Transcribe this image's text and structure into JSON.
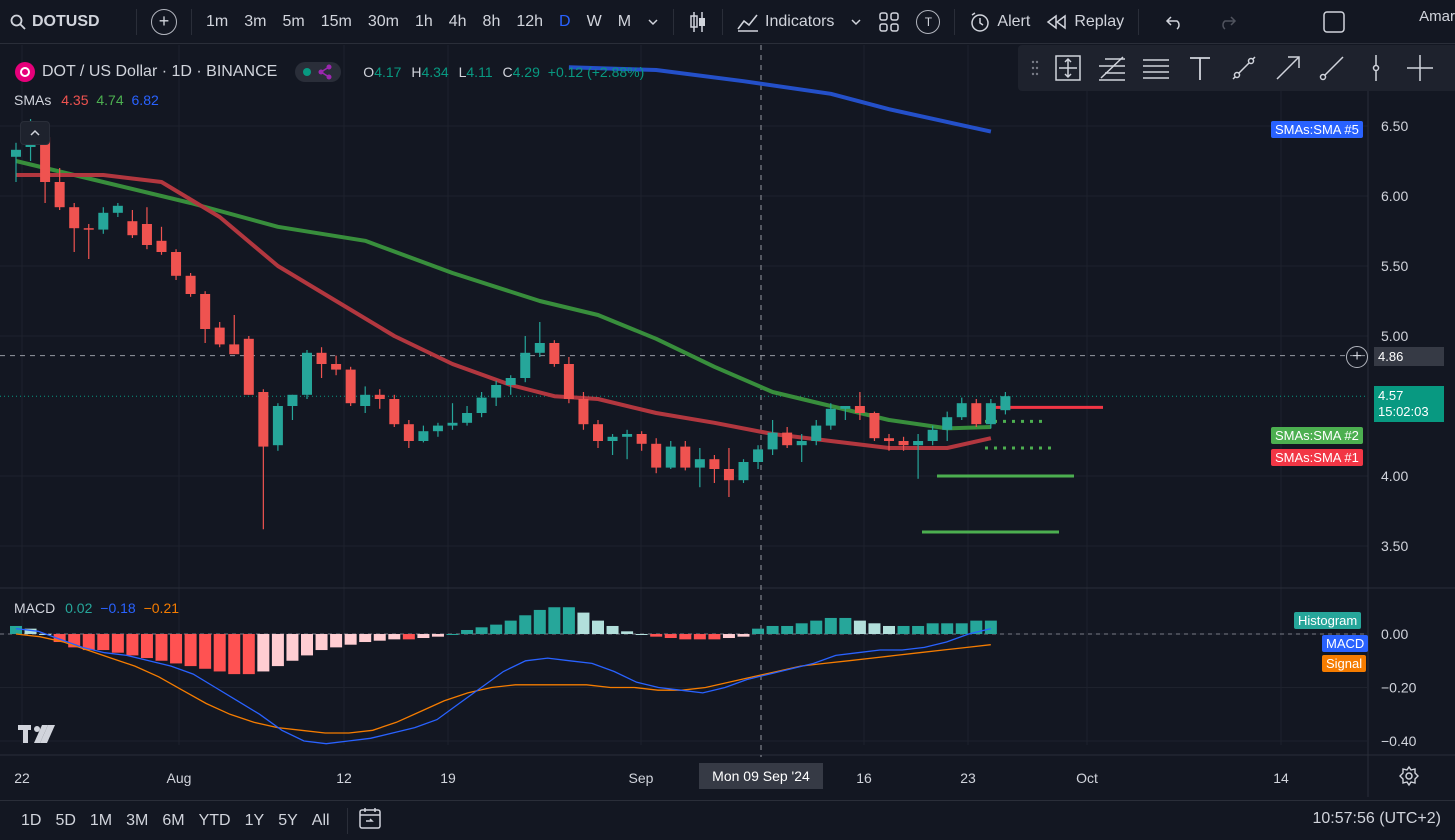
{
  "topbar": {
    "symbol": "DOTUSD",
    "intervals": [
      "1m",
      "3m",
      "5m",
      "15m",
      "30m",
      "1h",
      "4h",
      "8h",
      "12h",
      "D",
      "W",
      "M"
    ],
    "active_interval": "D",
    "indicators_label": "Indicators",
    "alert_label": "Alert",
    "replay_label": "Replay",
    "template_badge": "T",
    "user_name": "Amar"
  },
  "legend": {
    "title": "DOT / US Dollar · 1D · BINANCE",
    "o_label": "O",
    "o": "4.17",
    "h_label": "H",
    "h": "4.34",
    "l_label": "L",
    "l": "4.11",
    "c_label": "C",
    "c": "4.29",
    "change": "+0.12 (+2.88%)"
  },
  "sma_legend": {
    "name": "SMAs",
    "v1": "4.35",
    "v2": "4.74",
    "v3": "6.82"
  },
  "macd_legend": {
    "name": "MACD",
    "v1": "0.02",
    "v2": "−0.18",
    "v3": "−0.21"
  },
  "tags": {
    "sma5": "SMAs:SMA #5",
    "sma2": "SMAs:SMA #2",
    "sma1": "SMAs:SMA #1",
    "histogram": "Histogram",
    "macd": "MACD",
    "signal": "Signal"
  },
  "price_labels": {
    "cursor_price": "4.86",
    "last_price": "4.57",
    "countdown": "15:02:03"
  },
  "crosshair_date": "Mon 09 Sep '24",
  "bottombar": {
    "ranges": [
      "1D",
      "5D",
      "1M",
      "3M",
      "6M",
      "YTD",
      "1Y",
      "5Y",
      "All"
    ],
    "time": "10:57:56 (UTC+2)"
  },
  "colors": {
    "up": "#26a69a",
    "down": "#ef5350",
    "sma1": "#b2373f",
    "sma2": "#388e3c",
    "sma5": "#2450c9",
    "macd": "#2962ff",
    "signal": "#f57c00",
    "accent": "#2962ff"
  },
  "chart_data": [
    {
      "type": "candlestick",
      "title": "DOT / US Dollar · 1D · BINANCE",
      "x_tick_labels": [
        "22",
        "Aug",
        "12",
        "19",
        "Sep",
        "16",
        "23",
        "Oct",
        "14"
      ],
      "y_tick_labels": [
        "6.50",
        "6.00",
        "5.50",
        "5.00",
        "4.00",
        "3.50"
      ],
      "ylim": [
        3.3,
        6.85
      ],
      "candles": [
        [
          6.28,
          6.38,
          6.1,
          6.33
        ],
        [
          6.35,
          6.55,
          6.25,
          6.42
        ],
        [
          6.42,
          6.5,
          5.95,
          6.1
        ],
        [
          6.1,
          6.2,
          5.9,
          5.92
        ],
        [
          5.92,
          5.95,
          5.6,
          5.77
        ],
        [
          5.77,
          5.8,
          5.55,
          5.76
        ],
        [
          5.76,
          5.92,
          5.73,
          5.88
        ],
        [
          5.88,
          5.95,
          5.85,
          5.93
        ],
        [
          5.82,
          5.9,
          5.7,
          5.72
        ],
        [
          5.8,
          5.92,
          5.62,
          5.65
        ],
        [
          5.68,
          5.78,
          5.58,
          5.6
        ],
        [
          5.6,
          5.62,
          5.4,
          5.43
        ],
        [
          5.43,
          5.45,
          5.28,
          5.3
        ],
        [
          5.3,
          5.32,
          4.95,
          5.05
        ],
        [
          5.06,
          5.1,
          4.92,
          4.94
        ],
        [
          4.94,
          5.15,
          4.88,
          4.87
        ],
        [
          4.98,
          5.0,
          4.58,
          4.58
        ],
        [
          4.6,
          4.62,
          3.62,
          4.21
        ],
        [
          4.22,
          4.52,
          4.18,
          4.5
        ],
        [
          4.5,
          4.58,
          4.4,
          4.58
        ],
        [
          4.58,
          4.9,
          4.55,
          4.88
        ],
        [
          4.88,
          4.92,
          4.7,
          4.8
        ],
        [
          4.8,
          4.86,
          4.72,
          4.76
        ],
        [
          4.76,
          4.78,
          4.5,
          4.52
        ],
        [
          4.5,
          4.64,
          4.45,
          4.58
        ],
        [
          4.58,
          4.62,
          4.48,
          4.55
        ],
        [
          4.55,
          4.58,
          4.35,
          4.37
        ],
        [
          4.37,
          4.4,
          4.2,
          4.25
        ],
        [
          4.25,
          4.36,
          4.24,
          4.32
        ],
        [
          4.32,
          4.38,
          4.28,
          4.36
        ],
        [
          4.36,
          4.52,
          4.33,
          4.38
        ],
        [
          4.38,
          4.5,
          4.36,
          4.45
        ],
        [
          4.45,
          4.6,
          4.42,
          4.56
        ],
        [
          4.56,
          4.68,
          4.5,
          4.65
        ],
        [
          4.65,
          4.72,
          4.58,
          4.7
        ],
        [
          4.7,
          5.0,
          4.67,
          4.88
        ],
        [
          4.88,
          5.1,
          4.85,
          4.95
        ],
        [
          4.95,
          4.97,
          4.78,
          4.8
        ],
        [
          4.8,
          4.85,
          4.52,
          4.55
        ],
        [
          4.55,
          4.6,
          4.33,
          4.37
        ],
        [
          4.37,
          4.4,
          4.2,
          4.25
        ],
        [
          4.25,
          4.3,
          4.15,
          4.28
        ],
        [
          4.28,
          4.33,
          4.12,
          4.3
        ],
        [
          4.3,
          4.32,
          4.18,
          4.23
        ],
        [
          4.23,
          4.27,
          4.02,
          4.06
        ],
        [
          4.06,
          4.25,
          4.05,
          4.21
        ],
        [
          4.21,
          4.25,
          4.04,
          4.06
        ],
        [
          4.06,
          4.2,
          3.92,
          4.12
        ],
        [
          4.12,
          4.15,
          3.95,
          4.05
        ],
        [
          4.05,
          4.2,
          3.85,
          3.97
        ],
        [
          3.97,
          4.12,
          3.95,
          4.1
        ],
        [
          4.1,
          4.22,
          4.05,
          4.19
        ],
        [
          4.19,
          4.4,
          4.15,
          4.31
        ],
        [
          4.31,
          4.35,
          4.2,
          4.22
        ],
        [
          4.22,
          4.3,
          4.1,
          4.25
        ],
        [
          4.25,
          4.4,
          4.22,
          4.36
        ],
        [
          4.36,
          4.52,
          4.33,
          4.48
        ],
        [
          4.48,
          4.5,
          4.4,
          4.5
        ],
        [
          4.5,
          4.6,
          4.4,
          4.45
        ],
        [
          4.45,
          4.46,
          4.25,
          4.27
        ],
        [
          4.27,
          4.3,
          4.18,
          4.25
        ],
        [
          4.25,
          4.28,
          4.18,
          4.22
        ],
        [
          4.22,
          4.3,
          3.98,
          4.25
        ],
        [
          4.25,
          4.36,
          4.22,
          4.33
        ],
        [
          4.33,
          4.46,
          4.25,
          4.42
        ],
        [
          4.42,
          4.56,
          4.4,
          4.52
        ],
        [
          4.52,
          4.55,
          4.35,
          4.37
        ],
        [
          4.37,
          4.55,
          4.34,
          4.52
        ],
        [
          4.47,
          4.6,
          4.44,
          4.57
        ]
      ],
      "sma_1": [
        [
          0,
          6.15
        ],
        [
          6,
          6.15
        ],
        [
          10,
          6.1
        ],
        [
          14,
          5.85
        ],
        [
          18,
          5.5
        ],
        [
          22,
          5.25
        ],
        [
          26,
          5.0
        ],
        [
          30,
          4.8
        ],
        [
          34,
          4.65
        ],
        [
          37,
          4.57
        ],
        [
          40,
          4.55
        ],
        [
          44,
          4.45
        ],
        [
          48,
          4.38
        ],
        [
          52,
          4.3
        ],
        [
          56,
          4.25
        ],
        [
          60,
          4.2
        ],
        [
          64,
          4.2
        ],
        [
          67,
          4.27
        ]
      ],
      "sma_2": [
        [
          0,
          6.25
        ],
        [
          6,
          6.1
        ],
        [
          12,
          5.95
        ],
        [
          18,
          5.78
        ],
        [
          24,
          5.68
        ],
        [
          30,
          5.45
        ],
        [
          36,
          5.25
        ],
        [
          40,
          5.15
        ],
        [
          44,
          4.98
        ],
        [
          48,
          4.78
        ],
        [
          52,
          4.6
        ],
        [
          56,
          4.5
        ],
        [
          60,
          4.4
        ],
        [
          64,
          4.34
        ],
        [
          67,
          4.35
        ]
      ],
      "sma_5": [
        [
          38,
          6.92
        ],
        [
          44,
          6.9
        ],
        [
          50,
          6.82
        ],
        [
          56,
          6.73
        ],
        [
          60,
          6.62
        ],
        [
          67,
          6.46
        ]
      ],
      "horizontal_levels": [
        4.49,
        4.39,
        4.2,
        4.0,
        3.6
      ],
      "cursor_price": 4.86,
      "last_price": 4.57
    },
    {
      "type": "macd",
      "title": "MACD",
      "y_tick_labels": [
        "0.00",
        "−0.20",
        "−0.40"
      ],
      "ylim": [
        -0.46,
        0.08
      ],
      "histogram": [
        0.03,
        0.02,
        0.0,
        -0.03,
        -0.05,
        -0.06,
        -0.06,
        -0.07,
        -0.08,
        -0.09,
        -0.1,
        -0.11,
        -0.12,
        -0.13,
        -0.14,
        -0.15,
        -0.15,
        -0.14,
        -0.12,
        -0.1,
        -0.08,
        -0.06,
        -0.05,
        -0.04,
        -0.03,
        -0.025,
        -0.02,
        -0.02,
        -0.015,
        -0.01,
        0.0,
        0.015,
        0.025,
        0.035,
        0.05,
        0.07,
        0.09,
        0.1,
        0.1,
        0.08,
        0.05,
        0.03,
        0.01,
        0.0,
        -0.01,
        -0.015,
        -0.02,
        -0.02,
        -0.02,
        -0.015,
        -0.01,
        0.02,
        0.03,
        0.03,
        0.04,
        0.05,
        0.06,
        0.06,
        0.05,
        0.04,
        0.03,
        0.03,
        0.03,
        0.04,
        0.04,
        0.04,
        0.05,
        0.05
      ],
      "macd": [
        0.02,
        0.01,
        -0.02,
        -0.05,
        -0.07,
        -0.08,
        -0.1,
        -0.12,
        -0.15,
        -0.2,
        -0.25,
        -0.3,
        -0.36,
        -0.4,
        -0.41,
        -0.4,
        -0.39,
        -0.37,
        -0.35,
        -0.32,
        -0.26,
        -0.2,
        -0.14,
        -0.1,
        -0.09,
        -0.1,
        -0.11,
        -0.14,
        -0.18,
        -0.2,
        -0.21,
        -0.22,
        -0.2,
        -0.17,
        -0.15,
        -0.13,
        -0.11,
        -0.08,
        -0.07,
        -0.06,
        -0.06,
        -0.05,
        -0.03,
        0.0,
        0.02
      ],
      "signal": [
        0.0,
        -0.01,
        -0.03,
        -0.06,
        -0.09,
        -0.12,
        -0.16,
        -0.21,
        -0.26,
        -0.3,
        -0.33,
        -0.35,
        -0.36,
        -0.37,
        -0.37,
        -0.36,
        -0.33,
        -0.29,
        -0.25,
        -0.22,
        -0.2,
        -0.19,
        -0.19,
        -0.19,
        -0.19,
        -0.2,
        -0.2,
        -0.21,
        -0.21,
        -0.2,
        -0.18,
        -0.16,
        -0.14,
        -0.12,
        -0.11,
        -0.1,
        -0.09,
        -0.08,
        -0.07,
        -0.06,
        -0.05,
        -0.04
      ]
    }
  ]
}
